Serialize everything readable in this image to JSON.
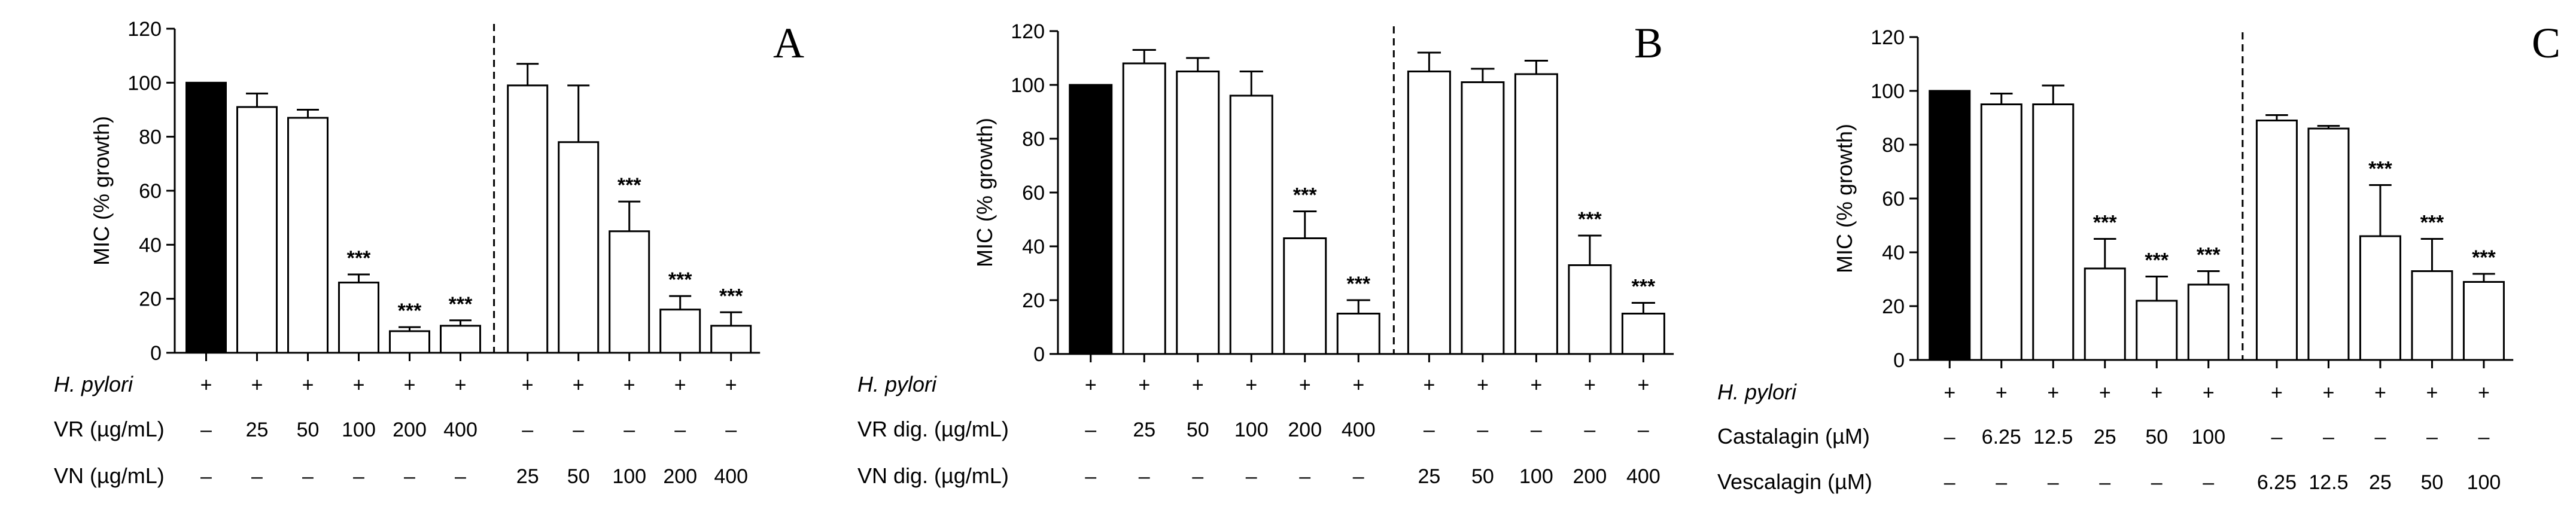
{
  "chart_data": [
    {
      "type": "bar",
      "panel": "A",
      "ylabel": "MIC (% growth)",
      "ylim": [
        0,
        120
      ],
      "yticks": [
        "0",
        "20",
        "40",
        "60",
        "80",
        "100",
        "120"
      ],
      "values": [
        100,
        91,
        87,
        26,
        8,
        10,
        99,
        78,
        45,
        16,
        10
      ],
      "errors": [
        0,
        5,
        3,
        3,
        1.5,
        2,
        8,
        21,
        11,
        5,
        5
      ],
      "stars": [
        "",
        "",
        "",
        "***",
        "***",
        "***",
        "",
        "",
        "***",
        "***",
        "***"
      ],
      "control_index": 0,
      "separator_after": 5,
      "rows": [
        {
          "label": "H. pylori",
          "italic": true,
          "cells": [
            "+",
            "+",
            "+",
            "+",
            "+",
            "+",
            "+",
            "+",
            "+",
            "+",
            "+"
          ]
        },
        {
          "label": "VR (µg/mL)",
          "italic": false,
          "cells": [
            "–",
            "25",
            "50",
            "100",
            "200",
            "400",
            "–",
            "–",
            "–",
            "–",
            "–"
          ]
        },
        {
          "label": "VN (µg/mL)",
          "italic": false,
          "cells": [
            "–",
            "–",
            "–",
            "–",
            "–",
            "–",
            "25",
            "50",
            "100",
            "200",
            "400"
          ]
        }
      ]
    },
    {
      "type": "bar",
      "panel": "B",
      "ylabel": "MIC (% growth)",
      "ylim": [
        0,
        120
      ],
      "yticks": [
        "0",
        "20",
        "40",
        "60",
        "80",
        "100",
        "120"
      ],
      "values": [
        100,
        108,
        105,
        96,
        43,
        15,
        105,
        101,
        104,
        33,
        15
      ],
      "errors": [
        0,
        5,
        5,
        9,
        10,
        5,
        7,
        5,
        5,
        11,
        4
      ],
      "stars": [
        "",
        "",
        "",
        "",
        "***",
        "***",
        "",
        "",
        "",
        "***",
        "***"
      ],
      "control_index": 0,
      "separator_after": 5,
      "rows": [
        {
          "label": "H. pylori",
          "italic": true,
          "cells": [
            "+",
            "+",
            "+",
            "+",
            "+",
            "+",
            "+",
            "+",
            "+",
            "+",
            "+"
          ]
        },
        {
          "label": "VR dig. (µg/mL)",
          "italic": false,
          "cells": [
            "–",
            "25",
            "50",
            "100",
            "200",
            "400",
            "–",
            "–",
            "–",
            "–",
            "–"
          ]
        },
        {
          "label": "VN dig. (µg/mL)",
          "italic": false,
          "cells": [
            "–",
            "–",
            "–",
            "–",
            "–",
            "–",
            "25",
            "50",
            "100",
            "200",
            "400"
          ]
        }
      ]
    },
    {
      "type": "bar",
      "panel": "C",
      "ylabel": "MIC (% growth)",
      "ylim": [
        0,
        120
      ],
      "yticks": [
        "0",
        "20",
        "40",
        "60",
        "80",
        "100",
        "120"
      ],
      "values": [
        100,
        95,
        95,
        34,
        22,
        28,
        89,
        86,
        46,
        33,
        29
      ],
      "errors": [
        0,
        4,
        7,
        11,
        9,
        5,
        2,
        1,
        19,
        12,
        3
      ],
      "stars": [
        "",
        "",
        "",
        "***",
        "***",
        "***",
        "",
        "",
        "***",
        "***",
        "***"
      ],
      "control_index": 0,
      "separator_after": 5,
      "rows": [
        {
          "label": "H. pylori",
          "italic": true,
          "cells": [
            "+",
            "+",
            "+",
            "+",
            "+",
            "+",
            "+",
            "+",
            "+",
            "+",
            "+"
          ]
        },
        {
          "label": "Castalagin (µM)",
          "italic": false,
          "cells": [
            "–",
            "6.25",
            "12.5",
            "25",
            "50",
            "100",
            "–",
            "–",
            "–",
            "–",
            "–"
          ]
        },
        {
          "label": "Vescalagin (µM)",
          "italic": false,
          "cells": [
            "–",
            "–",
            "–",
            "–",
            "–",
            "–",
            "6.25",
            "12.5",
            "25",
            "50",
            "100"
          ]
        }
      ]
    }
  ]
}
